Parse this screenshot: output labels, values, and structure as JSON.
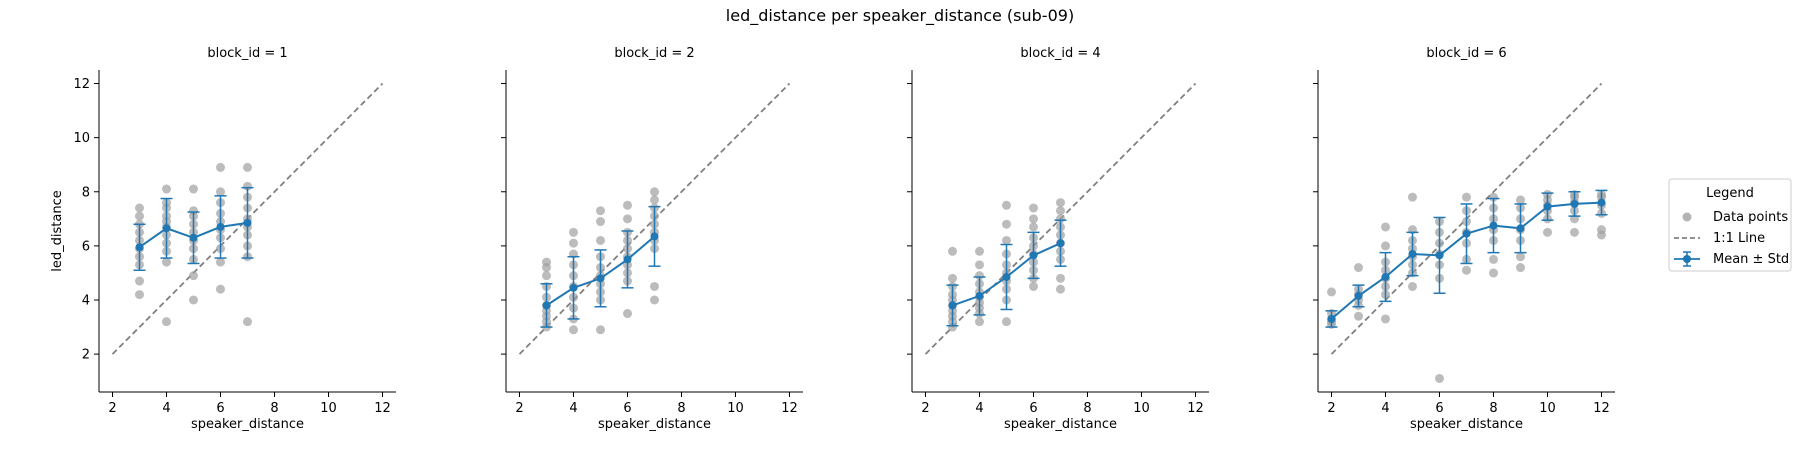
{
  "figure": {
    "title": "led_distance per speaker_distance (sub-09)"
  },
  "legend": {
    "title": "Legend",
    "items": [
      {
        "label": "Data points",
        "kind": "scatter",
        "color": "#a0a0a0"
      },
      {
        "label": "1:1 Line",
        "kind": "dashed",
        "color": "#808080"
      },
      {
        "label": "Mean ± Std",
        "kind": "errorbar",
        "color": "#1f77b4"
      }
    ],
    "placement": "right-outside"
  },
  "chart_data": [
    {
      "type": "scatter",
      "title": "block_id = 1",
      "xlabel": "speaker_distance",
      "ylabel": "led_distance",
      "xlim": [
        1.5,
        12.5
      ],
      "ylim": [
        0.6,
        12.5
      ],
      "xticks": [
        2,
        4,
        6,
        8,
        10,
        12
      ],
      "yticks": [
        2,
        4,
        6,
        8,
        10,
        12
      ],
      "identity_line": [
        2,
        12
      ],
      "mean_std": [
        {
          "x": 3,
          "mean": 5.95,
          "std": 0.85
        },
        {
          "x": 4,
          "mean": 6.65,
          "std": 1.1
        },
        {
          "x": 5,
          "mean": 6.3,
          "std": 0.95
        },
        {
          "x": 6,
          "mean": 6.7,
          "std": 1.15
        },
        {
          "x": 7,
          "mean": 6.85,
          "std": 1.3
        }
      ],
      "points": [
        [
          3,
          4.2
        ],
        [
          3,
          4.7
        ],
        [
          3,
          5.3
        ],
        [
          3,
          5.6
        ],
        [
          3,
          5.9
        ],
        [
          3,
          6.2
        ],
        [
          3,
          6.5
        ],
        [
          3,
          6.8
        ],
        [
          3,
          7.1
        ],
        [
          3,
          7.4
        ],
        [
          4,
          3.2
        ],
        [
          4,
          5.4
        ],
        [
          4,
          5.8
        ],
        [
          4,
          6.1
        ],
        [
          4,
          6.4
        ],
        [
          4,
          6.7
        ],
        [
          4,
          6.9
        ],
        [
          4,
          7.1
        ],
        [
          4,
          7.4
        ],
        [
          4,
          7.6
        ],
        [
          4,
          8.1
        ],
        [
          5,
          4.0
        ],
        [
          5,
          4.9
        ],
        [
          5,
          5.5
        ],
        [
          5,
          5.9
        ],
        [
          5,
          6.2
        ],
        [
          5,
          6.5
        ],
        [
          5,
          6.8
        ],
        [
          5,
          7.1
        ],
        [
          5,
          7.3
        ],
        [
          5,
          8.1
        ],
        [
          6,
          4.4
        ],
        [
          6,
          5.4
        ],
        [
          6,
          5.9
        ],
        [
          6,
          6.3
        ],
        [
          6,
          6.6
        ],
        [
          6,
          6.9
        ],
        [
          6,
          7.2
        ],
        [
          6,
          7.6
        ],
        [
          6,
          8.0
        ],
        [
          6,
          8.9
        ],
        [
          7,
          3.2
        ],
        [
          7,
          5.6
        ],
        [
          7,
          6.0
        ],
        [
          7,
          6.4
        ],
        [
          7,
          6.7
        ],
        [
          7,
          7.0
        ],
        [
          7,
          7.4
        ],
        [
          7,
          7.8
        ],
        [
          7,
          8.2
        ],
        [
          7,
          8.9
        ]
      ]
    },
    {
      "type": "scatter",
      "title": "block_id = 2",
      "xlabel": "speaker_distance",
      "ylabel": "",
      "xlim": [
        1.5,
        12.5
      ],
      "ylim": [
        0.6,
        12.5
      ],
      "xticks": [
        2,
        4,
        6,
        8,
        10,
        12
      ],
      "yticks": [
        2,
        4,
        6,
        8,
        10,
        12
      ],
      "identity_line": [
        2,
        12
      ],
      "mean_std": [
        {
          "x": 3,
          "mean": 3.8,
          "std": 0.8
        },
        {
          "x": 4,
          "mean": 4.45,
          "std": 1.15
        },
        {
          "x": 5,
          "mean": 4.8,
          "std": 1.05
        },
        {
          "x": 6,
          "mean": 5.5,
          "std": 1.05
        },
        {
          "x": 7,
          "mean": 6.35,
          "std": 1.1
        }
      ],
      "points": [
        [
          3,
          3.0
        ],
        [
          3,
          3.2
        ],
        [
          3,
          3.4
        ],
        [
          3,
          3.6
        ],
        [
          3,
          3.8
        ],
        [
          3,
          4.1
        ],
        [
          3,
          4.5
        ],
        [
          3,
          4.9
        ],
        [
          3,
          5.2
        ],
        [
          3,
          5.4
        ],
        [
          4,
          2.9
        ],
        [
          4,
          3.3
        ],
        [
          4,
          3.7
        ],
        [
          4,
          4.1
        ],
        [
          4,
          4.5
        ],
        [
          4,
          4.9
        ],
        [
          4,
          5.3
        ],
        [
          4,
          5.7
        ],
        [
          4,
          6.1
        ],
        [
          4,
          6.5
        ],
        [
          5,
          2.9
        ],
        [
          5,
          4.0
        ],
        [
          5,
          4.3
        ],
        [
          5,
          4.6
        ],
        [
          5,
          4.9
        ],
        [
          5,
          5.2
        ],
        [
          5,
          5.6
        ],
        [
          5,
          6.2
        ],
        [
          5,
          6.9
        ],
        [
          5,
          7.3
        ],
        [
          6,
          3.5
        ],
        [
          6,
          4.7
        ],
        [
          6,
          5.0
        ],
        [
          6,
          5.3
        ],
        [
          6,
          5.6
        ],
        [
          6,
          5.9
        ],
        [
          6,
          6.2
        ],
        [
          6,
          6.5
        ],
        [
          6,
          7.0
        ],
        [
          6,
          7.5
        ],
        [
          7,
          4.0
        ],
        [
          7,
          4.5
        ],
        [
          7,
          5.9
        ],
        [
          7,
          6.2
        ],
        [
          7,
          6.5
        ],
        [
          7,
          6.8
        ],
        [
          7,
          7.1
        ],
        [
          7,
          7.4
        ],
        [
          7,
          7.7
        ],
        [
          7,
          8.0
        ]
      ]
    },
    {
      "type": "scatter",
      "title": "block_id = 4",
      "xlabel": "speaker_distance",
      "ylabel": "",
      "xlim": [
        1.5,
        12.5
      ],
      "ylim": [
        0.6,
        12.5
      ],
      "xticks": [
        2,
        4,
        6,
        8,
        10,
        12
      ],
      "yticks": [
        2,
        4,
        6,
        8,
        10,
        12
      ],
      "identity_line": [
        2,
        12
      ],
      "mean_std": [
        {
          "x": 3,
          "mean": 3.8,
          "std": 0.75
        },
        {
          "x": 4,
          "mean": 4.15,
          "std": 0.7
        },
        {
          "x": 5,
          "mean": 4.85,
          "std": 1.2
        },
        {
          "x": 6,
          "mean": 5.65,
          "std": 0.85
        },
        {
          "x": 7,
          "mean": 6.1,
          "std": 0.85
        }
      ],
      "points": [
        [
          3,
          3.0
        ],
        [
          3,
          3.2
        ],
        [
          3,
          3.4
        ],
        [
          3,
          3.6
        ],
        [
          3,
          3.8
        ],
        [
          3,
          4.0
        ],
        [
          3,
          4.2
        ],
        [
          3,
          4.5
        ],
        [
          3,
          4.8
        ],
        [
          3,
          5.8
        ],
        [
          4,
          3.2
        ],
        [
          4,
          3.5
        ],
        [
          4,
          3.7
        ],
        [
          4,
          3.9
        ],
        [
          4,
          4.1
        ],
        [
          4,
          4.3
        ],
        [
          4,
          4.6
        ],
        [
          4,
          4.9
        ],
        [
          4,
          5.3
        ],
        [
          4,
          5.8
        ],
        [
          5,
          3.2
        ],
        [
          5,
          4.0
        ],
        [
          5,
          4.4
        ],
        [
          5,
          4.7
        ],
        [
          5,
          5.0
        ],
        [
          5,
          5.3
        ],
        [
          5,
          5.7
        ],
        [
          5,
          6.2
        ],
        [
          5,
          6.8
        ],
        [
          5,
          7.5
        ],
        [
          6,
          4.5
        ],
        [
          6,
          4.8
        ],
        [
          6,
          5.1
        ],
        [
          6,
          5.4
        ],
        [
          6,
          5.7
        ],
        [
          6,
          6.0
        ],
        [
          6,
          6.3
        ],
        [
          6,
          6.7
        ],
        [
          6,
          7.0
        ],
        [
          6,
          7.4
        ],
        [
          7,
          4.4
        ],
        [
          7,
          4.8
        ],
        [
          7,
          5.5
        ],
        [
          7,
          5.8
        ],
        [
          7,
          6.1
        ],
        [
          7,
          6.4
        ],
        [
          7,
          6.7
        ],
        [
          7,
          7.0
        ],
        [
          7,
          7.3
        ],
        [
          7,
          7.6
        ]
      ]
    },
    {
      "type": "scatter",
      "title": "block_id = 6",
      "xlabel": "speaker_distance",
      "ylabel": "",
      "xlim": [
        1.5,
        12.5
      ],
      "ylim": [
        0.6,
        12.5
      ],
      "xticks": [
        2,
        4,
        6,
        8,
        10,
        12
      ],
      "yticks": [
        2,
        4,
        6,
        8,
        10,
        12
      ],
      "identity_line": [
        2,
        12
      ],
      "mean_std": [
        {
          "x": 2,
          "mean": 3.3,
          "std": 0.3
        },
        {
          "x": 3,
          "mean": 4.15,
          "std": 0.4
        },
        {
          "x": 4,
          "mean": 4.85,
          "std": 0.9
        },
        {
          "x": 5,
          "mean": 5.7,
          "std": 0.8
        },
        {
          "x": 6,
          "mean": 5.65,
          "std": 1.4
        },
        {
          "x": 7,
          "mean": 6.45,
          "std": 1.1
        },
        {
          "x": 8,
          "mean": 6.75,
          "std": 1.0
        },
        {
          "x": 9,
          "mean": 6.65,
          "std": 0.9
        },
        {
          "x": 10,
          "mean": 7.45,
          "std": 0.5
        },
        {
          "x": 11,
          "mean": 7.55,
          "std": 0.45
        },
        {
          "x": 12,
          "mean": 7.6,
          "std": 0.45
        }
      ],
      "points": [
        [
          2,
          3.1
        ],
        [
          2,
          3.2
        ],
        [
          2,
          3.3
        ],
        [
          2,
          3.5
        ],
        [
          2,
          4.3
        ],
        [
          3,
          3.4
        ],
        [
          3,
          3.8
        ],
        [
          3,
          4.0
        ],
        [
          3,
          4.2
        ],
        [
          3,
          4.4
        ],
        [
          3,
          5.2
        ],
        [
          4,
          3.3
        ],
        [
          4,
          4.2
        ],
        [
          4,
          4.5
        ],
        [
          4,
          4.8
        ],
        [
          4,
          5.1
        ],
        [
          4,
          5.4
        ],
        [
          4,
          6.0
        ],
        [
          4,
          6.7
        ],
        [
          5,
          4.5
        ],
        [
          5,
          5.0
        ],
        [
          5,
          5.3
        ],
        [
          5,
          5.6
        ],
        [
          5,
          5.9
        ],
        [
          5,
          6.2
        ],
        [
          5,
          6.6
        ],
        [
          5,
          7.8
        ],
        [
          6,
          1.1
        ],
        [
          6,
          4.8
        ],
        [
          6,
          5.3
        ],
        [
          6,
          5.7
        ],
        [
          6,
          6.1
        ],
        [
          6,
          6.5
        ],
        [
          6,
          6.9
        ],
        [
          7,
          5.1
        ],
        [
          7,
          5.5
        ],
        [
          7,
          6.1
        ],
        [
          7,
          6.5
        ],
        [
          7,
          6.9
        ],
        [
          7,
          7.3
        ],
        [
          7,
          7.8
        ],
        [
          8,
          5.0
        ],
        [
          8,
          5.5
        ],
        [
          8,
          6.2
        ],
        [
          8,
          6.6
        ],
        [
          8,
          7.0
        ],
        [
          8,
          7.4
        ],
        [
          8,
          7.8
        ],
        [
          9,
          5.2
        ],
        [
          9,
          5.6
        ],
        [
          9,
          6.2
        ],
        [
          9,
          6.6
        ],
        [
          9,
          7.0
        ],
        [
          9,
          7.4
        ],
        [
          9,
          7.7
        ],
        [
          10,
          6.5
        ],
        [
          10,
          7.0
        ],
        [
          10,
          7.3
        ],
        [
          10,
          7.5
        ],
        [
          10,
          7.7
        ],
        [
          10,
          7.9
        ],
        [
          11,
          6.5
        ],
        [
          11,
          7.0
        ],
        [
          11,
          7.3
        ],
        [
          11,
          7.6
        ],
        [
          11,
          7.8
        ],
        [
          11,
          7.9
        ],
        [
          12,
          6.4
        ],
        [
          12,
          6.6
        ],
        [
          12,
          7.2
        ],
        [
          12,
          7.5
        ],
        [
          12,
          7.8
        ],
        [
          12,
          7.9
        ]
      ]
    }
  ]
}
